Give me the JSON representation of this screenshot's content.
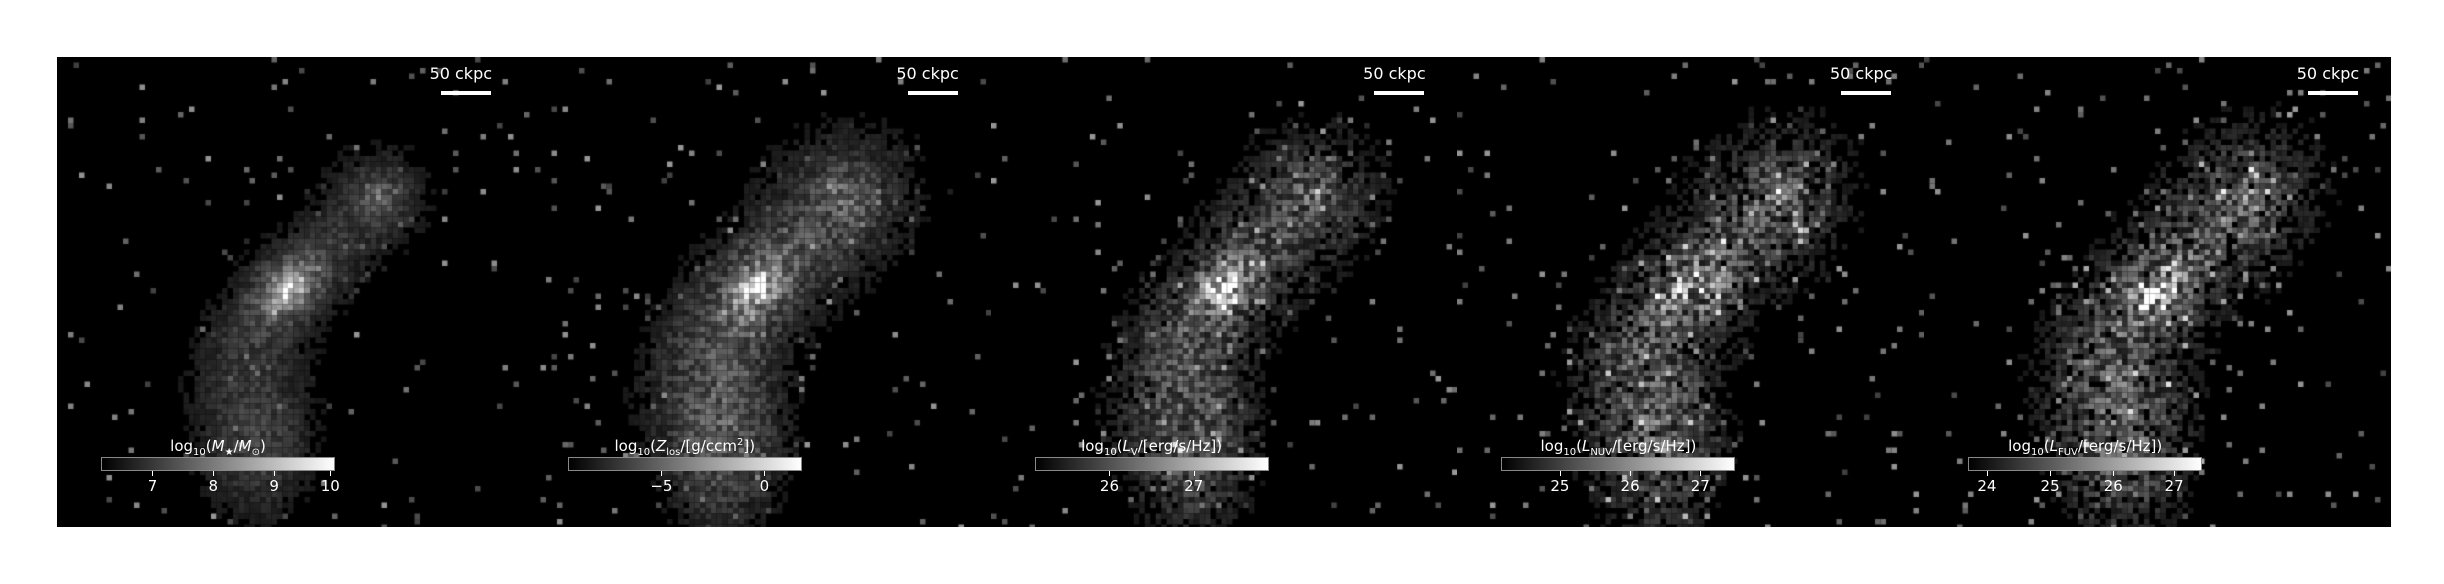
{
  "panels": [
    {
      "scalebar": "50 ckpc",
      "colorbar_title_html": "log<sub>10</sub>(<i>M</i><sub>★</sub>/<i>M</i><sub>⊙</sub>)",
      "ticks": [
        {
          "label": "7",
          "frac": 0.22
        },
        {
          "label": "8",
          "frac": 0.48
        },
        {
          "label": "9",
          "frac": 0.74
        },
        {
          "label": "10",
          "frac": 0.98
        }
      ],
      "seed": 11,
      "core": 1.0,
      "noise": 0.35,
      "spread": 1.0
    },
    {
      "scalebar": "50 ckpc",
      "colorbar_title_html": "log<sub>10</sub>(<i>Z</i><sub>los</sub>/[g/ccm<sup>2</sup>])",
      "ticks": [
        {
          "label": "−5",
          "frac": 0.4
        },
        {
          "label": "0",
          "frac": 0.84
        }
      ],
      "seed": 23,
      "core": 1.0,
      "noise": 0.45,
      "spread": 1.35
    },
    {
      "scalebar": "50 ckpc",
      "colorbar_title_html": "log<sub>10</sub>(<i>L</i><sub>V</sub>/[erg/s/Hz])",
      "ticks": [
        {
          "label": "26",
          "frac": 0.32
        },
        {
          "label": "27",
          "frac": 0.68
        }
      ],
      "seed": 37,
      "core": 0.85,
      "noise": 0.65,
      "spread": 1.25
    },
    {
      "scalebar": "50 ckpc",
      "colorbar_title_html": "log<sub>10</sub>(<i>L</i><sub>NUV</sub>/[erg/s/Hz])",
      "ticks": [
        {
          "label": "25",
          "frac": 0.25
        },
        {
          "label": "26",
          "frac": 0.55
        },
        {
          "label": "27",
          "frac": 0.85
        }
      ],
      "seed": 53,
      "core": 0.75,
      "noise": 0.8,
      "spread": 1.3
    },
    {
      "scalebar": "50 ckpc",
      "colorbar_title_html": "log<sub>10</sub>(<i>L</i><sub>FUV</sub>/[erg/s/Hz])",
      "ticks": [
        {
          "label": "24",
          "frac": 0.08
        },
        {
          "label": "25",
          "frac": 0.35
        },
        {
          "label": "26",
          "frac": 0.62
        },
        {
          "label": "27",
          "frac": 0.88
        }
      ],
      "seed": 71,
      "core": 0.75,
      "noise": 0.85,
      "spread": 1.3
    }
  ]
}
